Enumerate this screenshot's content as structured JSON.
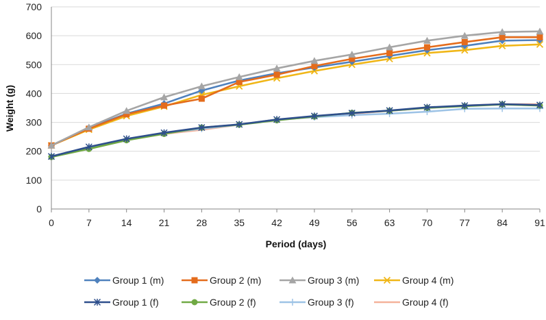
{
  "chart_data": {
    "type": "line",
    "title": "",
    "xlabel": "Period (days)",
    "ylabel": "Weight (g)",
    "x": [
      0,
      7,
      14,
      21,
      28,
      35,
      42,
      49,
      56,
      63,
      70,
      77,
      84,
      91
    ],
    "ylim": [
      0,
      700
    ],
    "yticks": [
      0,
      100,
      200,
      300,
      400,
      500,
      600,
      700
    ],
    "grid": true,
    "legend_position": "bottom",
    "series": [
      {
        "name": "Group 1 (m)",
        "color": "#4f81bd",
        "marker": "diamond",
        "values": [
          220,
          280,
          330,
          365,
          410,
          445,
          470,
          490,
          510,
          530,
          550,
          565,
          583,
          585
        ]
      },
      {
        "name": "Group 2  (m)",
        "color": "#e46c1c",
        "marker": "square",
        "values": [
          220,
          278,
          328,
          358,
          382,
          440,
          465,
          495,
          520,
          540,
          560,
          578,
          595,
          595
        ]
      },
      {
        "name": "Group 3 (m)",
        "color": "#a5a5a5",
        "marker": "triangle",
        "values": [
          220,
          283,
          340,
          387,
          425,
          457,
          487,
          513,
          535,
          560,
          583,
          600,
          613,
          615
        ]
      },
      {
        "name": "Group 4 (m)",
        "color": "#f0b617",
        "marker": "x",
        "values": [
          220,
          275,
          322,
          355,
          395,
          425,
          453,
          478,
          500,
          520,
          540,
          550,
          565,
          570
        ]
      },
      {
        "name": "Group 1 (f)",
        "color": "#2e4f8c",
        "marker": "star",
        "values": [
          182,
          215,
          243,
          264,
          282,
          293,
          310,
          322,
          332,
          341,
          352,
          358,
          363,
          360
        ]
      },
      {
        "name": "Group 2 (f)",
        "color": "#70a944",
        "marker": "circle",
        "values": [
          180,
          208,
          238,
          260,
          282,
          292,
          307,
          320,
          333,
          340,
          350,
          356,
          362,
          358
        ]
      },
      {
        "name": "Group 3 (f)",
        "color": "#9dc3e6",
        "marker": "plus",
        "values": [
          182,
          214,
          243,
          262,
          278,
          292,
          310,
          318,
          325,
          330,
          337,
          347,
          348,
          348
        ]
      },
      {
        "name": "Group 4 (f)",
        "color": "#f4b29a",
        "marker": "none",
        "values": [
          182,
          213,
          240,
          260,
          274,
          292,
          310,
          318,
          330,
          340,
          350,
          358,
          363,
          363
        ]
      }
    ]
  }
}
